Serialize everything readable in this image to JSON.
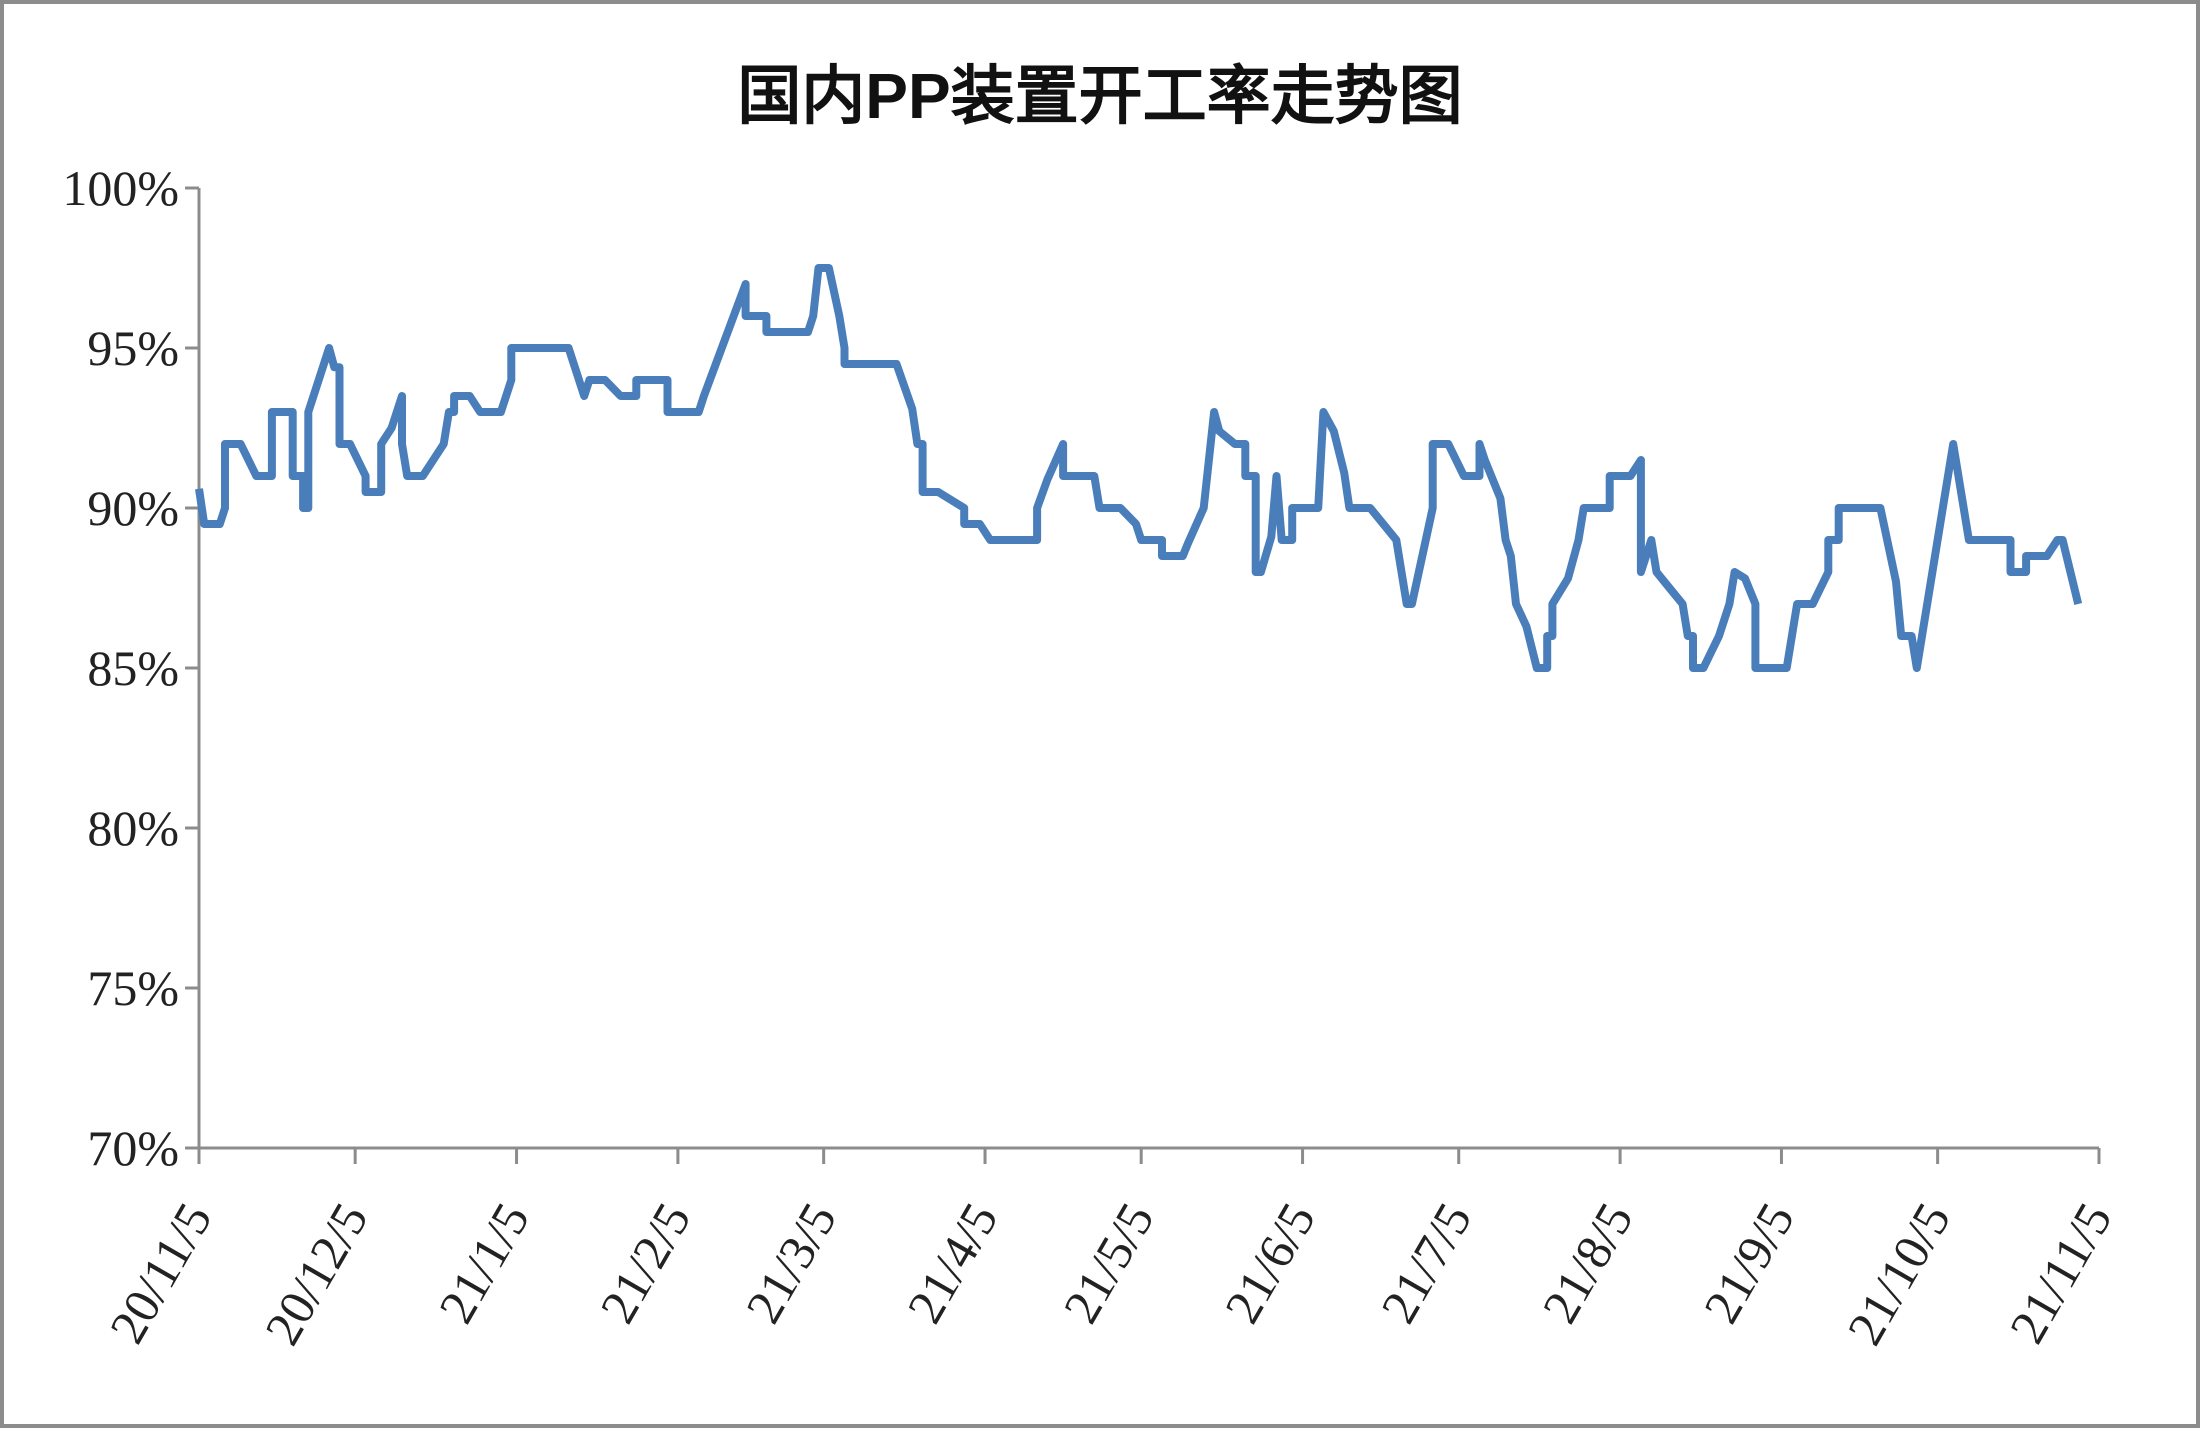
{
  "chart_data": {
    "type": "line",
    "title": "国内PP装置开工率走势图",
    "xlim": [
      "2020-11-05",
      "2021-11-05"
    ],
    "xticks": [
      {
        "value": "2020-11-05",
        "label": "20/11/5"
      },
      {
        "value": "2020-12-05",
        "label": "20/12/5"
      },
      {
        "value": "2021-01-05",
        "label": "21/1/5"
      },
      {
        "value": "2021-02-05",
        "label": "21/2/5"
      },
      {
        "value": "2021-03-05",
        "label": "21/3/5"
      },
      {
        "value": "2021-04-05",
        "label": "21/4/5"
      },
      {
        "value": "2021-05-05",
        "label": "21/5/5"
      },
      {
        "value": "2021-06-05",
        "label": "21/6/5"
      },
      {
        "value": "2021-07-05",
        "label": "21/7/5"
      },
      {
        "value": "2021-08-05",
        "label": "21/8/5"
      },
      {
        "value": "2021-09-05",
        "label": "21/9/5"
      },
      {
        "value": "2021-10-05",
        "label": "21/10/5"
      },
      {
        "value": "2021-11-05",
        "label": "21/11/5"
      }
    ],
    "ylim": [
      70,
      100
    ],
    "yticks": [
      {
        "value": 70,
        "label": "70%"
      },
      {
        "value": 75,
        "label": "75%"
      },
      {
        "value": 80,
        "label": "80%"
      },
      {
        "value": 85,
        "label": "85%"
      },
      {
        "value": 90,
        "label": "90%"
      },
      {
        "value": 95,
        "label": "95%"
      },
      {
        "value": 100,
        "label": "100%"
      }
    ],
    "grid": false,
    "x": [
      "2020-11-05",
      "2020-11-06",
      "2020-11-09",
      "2020-11-10",
      "2020-11-10",
      "2020-11-13",
      "2020-11-16",
      "2020-11-19",
      "2020-11-19",
      "2020-11-23",
      "2020-11-23",
      "2020-11-25",
      "2020-11-25",
      "2020-11-26",
      "2020-11-26",
      "2020-11-30",
      "2020-12-01",
      "2020-12-02",
      "2020-12-02",
      "2020-12-04",
      "2020-12-07",
      "2020-12-07",
      "2020-12-10",
      "2020-12-10",
      "2020-12-12",
      "2020-12-14",
      "2020-12-14",
      "2020-12-15",
      "2020-12-18",
      "2020-12-22",
      "2020-12-23",
      "2020-12-24",
      "2020-12-24",
      "2020-12-27",
      "2020-12-29",
      "2021-01-02",
      "2021-01-04",
      "2021-01-04",
      "2021-01-15",
      "2021-01-18",
      "2021-01-19",
      "2021-01-22",
      "2021-01-25",
      "2021-01-28",
      "2021-01-28",
      "2021-02-03",
      "2021-02-03",
      "2021-02-09",
      "2021-02-10",
      "2021-02-18",
      "2021-02-18",
      "2021-02-22",
      "2021-02-22",
      "2021-03-02",
      "2021-03-03",
      "2021-03-04",
      "2021-03-06",
      "2021-03-08",
      "2021-03-09",
      "2021-03-09",
      "2021-03-19",
      "2021-03-22",
      "2021-03-23",
      "2021-03-24",
      "2021-03-24",
      "2021-03-27",
      "2021-03-30",
      "2021-04-01",
      "2021-04-01",
      "2021-04-04",
      "2021-04-06",
      "2021-04-15",
      "2021-04-15",
      "2021-04-17",
      "2021-04-20",
      "2021-04-20",
      "2021-04-26",
      "2021-04-27",
      "2021-05-01",
      "2021-05-04",
      "2021-05-05",
      "2021-05-09",
      "2021-05-09",
      "2021-05-13",
      "2021-05-14",
      "2021-05-17",
      "2021-05-19",
      "2021-05-20",
      "2021-05-23",
      "2021-05-25",
      "2021-05-25",
      "2021-05-27",
      "2021-05-27",
      "2021-05-28",
      "2021-05-30",
      "2021-05-31",
      "2021-06-01",
      "2021-06-03",
      "2021-06-03",
      "2021-06-08",
      "2021-06-09",
      "2021-06-11",
      "2021-06-13",
      "2021-06-14",
      "2021-06-18",
      "2021-06-23",
      "2021-06-24",
      "2021-06-25",
      "2021-06-26",
      "2021-06-30",
      "2021-06-30",
      "2021-07-03",
      "2021-07-06",
      "2021-07-09",
      "2021-07-09",
      "2021-07-10",
      "2021-07-13",
      "2021-07-14",
      "2021-07-15",
      "2021-07-16",
      "2021-07-18",
      "2021-07-20",
      "2021-07-22",
      "2021-07-22",
      "2021-07-23",
      "2021-07-23",
      "2021-07-26",
      "2021-07-28",
      "2021-07-29",
      "2021-08-03",
      "2021-08-03",
      "2021-08-07",
      "2021-08-09",
      "2021-08-09",
      "2021-08-11",
      "2021-08-12",
      "2021-08-14",
      "2021-08-17",
      "2021-08-18",
      "2021-08-19",
      "2021-08-19",
      "2021-08-21",
      "2021-08-24",
      "2021-08-26",
      "2021-08-27",
      "2021-08-29",
      "2021-08-31",
      "2021-08-31",
      "2021-09-06",
      "2021-09-07",
      "2021-09-08",
      "2021-09-11",
      "2021-09-14",
      "2021-09-14",
      "2021-09-16",
      "2021-09-16",
      "2021-09-24",
      "2021-09-27",
      "2021-09-28",
      "2021-09-30",
      "2021-10-01",
      "2021-10-08",
      "2021-10-11",
      "2021-10-19",
      "2021-10-19",
      "2021-10-22",
      "2021-10-22",
      "2021-10-26",
      "2021-10-28",
      "2021-10-29",
      "2021-11-01"
    ],
    "series": [
      {
        "color": "#4a7ebb",
        "values": [
          90.6,
          89.5,
          89.5,
          90,
          92,
          92,
          91,
          91,
          93,
          93,
          91,
          91,
          90,
          90,
          93,
          95,
          94.4,
          94.4,
          92,
          92,
          91,
          90.5,
          90.5,
          92,
          92.5,
          93.5,
          92,
          91,
          91,
          92,
          93,
          93,
          93.5,
          93.5,
          93,
          93,
          94,
          95,
          95,
          93.5,
          94,
          94,
          93.5,
          93.5,
          94,
          94,
          93,
          93,
          93.5,
          97,
          96,
          96,
          95.5,
          95.5,
          96,
          97.5,
          97.5,
          96,
          95,
          94.5,
          94.5,
          93.1,
          92,
          92,
          90.5,
          90.5,
          90.2,
          90,
          89.5,
          89.5,
          89,
          89,
          90,
          90.9,
          92,
          91,
          91,
          90,
          90,
          89.5,
          89,
          89,
          88.5,
          88.5,
          88.9,
          90,
          93,
          92.4,
          92,
          92,
          91,
          91,
          88,
          88,
          89.1,
          91,
          89,
          89,
          90,
          90,
          93,
          92.4,
          91.1,
          90,
          90,
          89,
          88,
          87,
          87,
          90,
          92,
          92,
          91,
          91,
          92,
          91.5,
          90.3,
          89,
          88.5,
          87,
          86.3,
          85,
          85,
          86,
          86,
          87,
          87.8,
          89,
          90,
          90,
          91,
          91,
          91.5,
          88,
          89,
          88,
          87.6,
          87,
          86,
          86,
          85,
          85,
          86,
          87,
          88,
          87.8,
          87,
          85,
          85,
          86,
          87,
          87,
          88,
          89,
          89,
          90,
          90,
          87.7,
          86,
          86,
          85,
          92,
          89,
          89,
          88,
          88,
          88.5,
          88.5,
          89,
          89,
          87
        ]
      }
    ]
  }
}
